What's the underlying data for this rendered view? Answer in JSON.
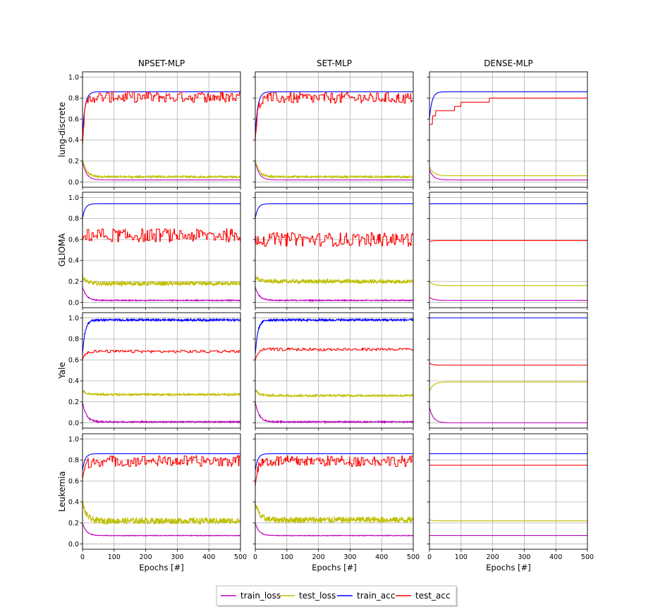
{
  "chart_data": {
    "type": "line",
    "layout": "grid-4x3",
    "columns": [
      "NPSET-MLP",
      "SET-MLP",
      "DENSE-MLP"
    ],
    "rows": [
      "lung-discrete",
      "GLIOMA",
      "Yale",
      "Leukemia"
    ],
    "xlabel": "Epochs [#]",
    "xlim": [
      0,
      500
    ],
    "ylim": [
      -0.05,
      1.05
    ],
    "xticks": [
      "0",
      "100",
      "200",
      "300",
      "400",
      "500"
    ],
    "yticks": [
      "0.0",
      "0.2",
      "0.4",
      "0.6",
      "0.8",
      "1.0"
    ],
    "grid": true,
    "legend": {
      "placement": "bottom-center",
      "entries": [
        {
          "name": "train_loss",
          "color": "#bf00bf"
        },
        {
          "name": "test_loss",
          "color": "#bfbf00"
        },
        {
          "name": "train_acc",
          "color": "#0000ff"
        },
        {
          "name": "test_acc",
          "color": "#ff0000"
        }
      ]
    },
    "panels": [
      {
        "row": "lung-discrete",
        "column": "NPSET-MLP",
        "series": {
          "train_loss": {
            "start": 0.2,
            "final": 0.02,
            "noise": 0.0
          },
          "test_loss": {
            "start": 0.22,
            "final": 0.05,
            "noise": 0.01
          },
          "train_acc": {
            "start": 0.45,
            "final": 0.86,
            "noise": 0.0
          },
          "test_acc": {
            "start": 0.4,
            "final": 0.81,
            "noise": 0.04
          }
        }
      },
      {
        "row": "lung-discrete",
        "column": "SET-MLP",
        "series": {
          "train_loss": {
            "start": 0.2,
            "final": 0.02,
            "noise": 0.0
          },
          "test_loss": {
            "start": 0.22,
            "final": 0.05,
            "noise": 0.01
          },
          "train_acc": {
            "start": 0.45,
            "final": 0.86,
            "noise": 0.0
          },
          "test_acc": {
            "start": 0.4,
            "final": 0.8,
            "noise": 0.04
          }
        }
      },
      {
        "row": "lung-discrete",
        "column": "DENSE-MLP",
        "series": {
          "train_loss": {
            "start": 0.12,
            "final": 0.02,
            "noise": 0.0
          },
          "test_loss": {
            "start": 0.15,
            "final": 0.06,
            "noise": 0.0
          },
          "train_acc": {
            "start": 0.6,
            "final": 0.86,
            "noise": 0.0
          },
          "test_acc": {
            "steps": [
              [
                0,
                0.55
              ],
              [
                10,
                0.63
              ],
              [
                20,
                0.68
              ],
              [
                80,
                0.72
              ],
              [
                100,
                0.76
              ],
              [
                190,
                0.8
              ],
              [
                500,
                0.8
              ]
            ]
          }
        }
      },
      {
        "row": "GLIOMA",
        "column": "NPSET-MLP",
        "series": {
          "train_loss": {
            "start": 0.15,
            "final": 0.02,
            "noise": 0.005
          },
          "test_loss": {
            "start": 0.25,
            "final": 0.18,
            "noise": 0.02
          },
          "train_acc": {
            "start": 0.8,
            "final": 0.94,
            "noise": 0.0
          },
          "test_acc": {
            "start": 0.6,
            "final": 0.64,
            "noise": 0.05
          }
        }
      },
      {
        "row": "GLIOMA",
        "column": "SET-MLP",
        "series": {
          "train_loss": {
            "start": 0.15,
            "final": 0.02,
            "noise": 0.005
          },
          "test_loss": {
            "start": 0.25,
            "final": 0.2,
            "noise": 0.02
          },
          "train_acc": {
            "start": 0.8,
            "final": 0.94,
            "noise": 0.0
          },
          "test_acc": {
            "start": 0.62,
            "final": 0.6,
            "noise": 0.05
          }
        }
      },
      {
        "row": "GLIOMA",
        "column": "DENSE-MLP",
        "series": {
          "train_loss": {
            "start": 0.05,
            "final": 0.02,
            "noise": 0.0
          },
          "test_loss": {
            "start": 0.2,
            "final": 0.16,
            "noise": 0.0
          },
          "train_acc": {
            "start": 0.94,
            "final": 0.94,
            "noise": 0.0
          },
          "test_acc": {
            "start": 0.58,
            "final": 0.59,
            "noise": 0.0
          }
        }
      },
      {
        "row": "Yale",
        "column": "NPSET-MLP",
        "series": {
          "train_loss": {
            "start": 0.2,
            "final": 0.01,
            "noise": 0.006
          },
          "test_loss": {
            "start": 0.31,
            "final": 0.27,
            "noise": 0.01
          },
          "train_acc": {
            "start": 0.65,
            "final": 0.98,
            "noise": 0.01
          },
          "test_acc": {
            "start": 0.6,
            "final": 0.68,
            "noise": 0.01
          }
        }
      },
      {
        "row": "Yale",
        "column": "SET-MLP",
        "series": {
          "train_loss": {
            "start": 0.2,
            "final": 0.01,
            "noise": 0.006
          },
          "test_loss": {
            "start": 0.31,
            "final": 0.26,
            "noise": 0.01
          },
          "train_acc": {
            "start": 0.65,
            "final": 0.98,
            "noise": 0.01
          },
          "test_acc": {
            "start": 0.6,
            "final": 0.7,
            "noise": 0.01
          }
        }
      },
      {
        "row": "Yale",
        "column": "DENSE-MLP",
        "series": {
          "train_loss": {
            "start": 0.15,
            "final": 0.0,
            "noise": 0.0
          },
          "test_loss": {
            "start": 0.3,
            "final": 0.39,
            "noise": 0.0
          },
          "train_acc": {
            "start": 1.0,
            "final": 1.0,
            "noise": 0.0
          },
          "test_acc": {
            "start": 0.57,
            "final": 0.55,
            "noise": 0.0
          }
        }
      },
      {
        "row": "Leukemia",
        "column": "NPSET-MLP",
        "series": {
          "train_loss": {
            "start": 0.2,
            "final": 0.08,
            "noise": 0.003
          },
          "test_loss": {
            "start": 0.4,
            "final": 0.22,
            "noise": 0.03
          },
          "train_acc": {
            "start": 0.7,
            "final": 0.86,
            "noise": 0.0
          },
          "test_acc": {
            "start": 0.6,
            "final": 0.79,
            "noise": 0.04
          }
        }
      },
      {
        "row": "Leukemia",
        "column": "SET-MLP",
        "series": {
          "train_loss": {
            "start": 0.2,
            "final": 0.08,
            "noise": 0.003
          },
          "test_loss": {
            "start": 0.4,
            "final": 0.23,
            "noise": 0.03
          },
          "train_acc": {
            "start": 0.7,
            "final": 0.86,
            "noise": 0.0
          },
          "test_acc": {
            "start": 0.6,
            "final": 0.79,
            "noise": 0.04
          }
        }
      },
      {
        "row": "Leukemia",
        "column": "DENSE-MLP",
        "series": {
          "train_loss": {
            "start": 0.08,
            "final": 0.08,
            "noise": 0.0
          },
          "test_loss": {
            "start": 0.23,
            "final": 0.22,
            "noise": 0.0
          },
          "train_acc": {
            "start": 0.86,
            "final": 0.86,
            "noise": 0.0
          },
          "test_acc": {
            "start": 0.75,
            "final": 0.75,
            "noise": 0.0
          }
        }
      }
    ]
  }
}
